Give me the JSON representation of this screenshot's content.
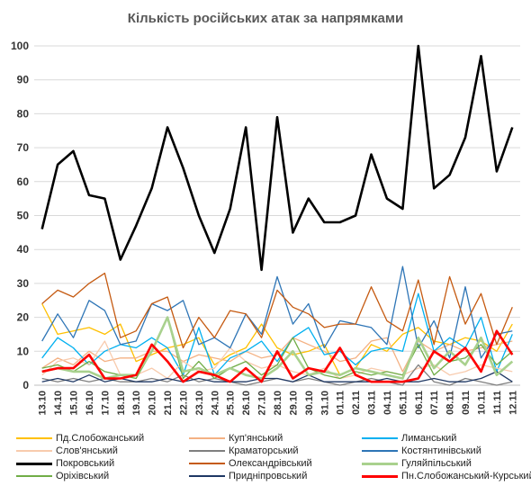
{
  "chart_data": {
    "type": "line",
    "title": "Кількість російських атак за напрямками",
    "xlabel": "",
    "ylabel": "",
    "ylim": [
      0,
      100
    ],
    "yticks": [
      0,
      10,
      20,
      30,
      40,
      50,
      60,
      70,
      80,
      90,
      100
    ],
    "grid": true,
    "legend_position": "bottom",
    "categories": [
      "13.10",
      "14.10",
      "15.10",
      "16.10",
      "17.10",
      "18.10",
      "19.10",
      "20.10",
      "21.10",
      "22.10",
      "23.10",
      "24.10",
      "25.10",
      "26.10",
      "27.10",
      "28.10",
      "29.10",
      "30.10",
      "31.10",
      "01.11",
      "02.11",
      "03.11",
      "04.11",
      "05.11",
      "06.11",
      "07.11",
      "08.11",
      "09.11",
      "10.11",
      "11.11",
      "12.11"
    ],
    "x_tick_labels": [
      "13.10",
      "14.10",
      "15.10",
      "16.10",
      "17.10",
      "18.10",
      "19.10",
      "20.10",
      "21.10",
      "22.10",
      "23.10",
      "24.10",
      "25.10",
      "26.10",
      "27.10",
      "28.10",
      "29.10",
      "30.10",
      "31.10",
      "01.11",
      "02.11",
      "03.11",
      "04.11",
      "05.11",
      "06.11",
      "07.11",
      "08.11",
      "09.11",
      "10.11",
      "11.11",
      "12.11"
    ],
    "series": [
      {
        "name": "Пд.Слобожанський",
        "color": "#FFC000",
        "width": 1.3,
        "values": [
          24,
          15,
          16,
          17,
          15,
          18,
          7,
          9,
          11,
          12,
          14,
          6,
          9,
          11,
          18,
          11,
          9,
          10,
          12,
          3,
          5,
          12,
          10,
          15,
          17,
          13,
          12,
          14,
          13,
          10,
          18
        ]
      },
      {
        "name": "Куп'янський",
        "color": "#F4B183",
        "width": 1.3,
        "values": [
          5,
          8,
          6,
          10,
          7,
          8,
          8,
          10,
          10,
          7,
          9,
          8,
          7,
          10,
          8,
          9,
          14,
          12,
          10,
          7,
          8,
          13,
          14,
          4,
          13,
          10,
          12,
          10,
          11,
          12,
          13
        ]
      },
      {
        "name": "Лиманський",
        "color": "#00B0F0",
        "width": 1.3,
        "values": [
          8,
          14,
          11,
          6,
          10,
          12,
          11,
          14,
          11,
          3,
          17,
          3,
          8,
          10,
          13,
          7,
          14,
          17,
          9,
          10,
          6,
          10,
          11,
          10,
          27,
          10,
          14,
          11,
          20,
          4,
          15
        ]
      },
      {
        "name": "Слов'янський",
        "color": "#F8CBAD",
        "width": 1.3,
        "values": [
          3,
          7,
          8,
          6,
          13,
          3,
          3,
          5,
          2,
          7,
          4,
          5,
          11,
          7,
          5,
          6,
          4,
          3,
          5,
          2,
          3,
          5,
          4,
          3,
          5,
          6,
          3,
          4,
          6,
          5,
          4
        ]
      },
      {
        "name": "Краматорський",
        "color": "#7F7F7F",
        "width": 1.3,
        "values": [
          2,
          1,
          2,
          1,
          2,
          1,
          1,
          2,
          1,
          3,
          1,
          2,
          1,
          0,
          1,
          2,
          1,
          2,
          1,
          0,
          1,
          2,
          1,
          0,
          6,
          1,
          0,
          2,
          1,
          0,
          1
        ]
      },
      {
        "name": "Костянтинівський",
        "color": "#2E75B6",
        "width": 1.3,
        "values": [
          13,
          21,
          14,
          25,
          22,
          12,
          13,
          24,
          22,
          25,
          12,
          14,
          11,
          21,
          15,
          32,
          18,
          24,
          11,
          19,
          18,
          17,
          12,
          35,
          11,
          19,
          8,
          29,
          8,
          15,
          16
        ]
      },
      {
        "name": "Покровський",
        "color": "#000000",
        "width": 2.6,
        "values": [
          46,
          65,
          69,
          56,
          55,
          37,
          47,
          58,
          76,
          64,
          50,
          39,
          52,
          76,
          34,
          79,
          45,
          55,
          48,
          48,
          50,
          68,
          55,
          52,
          100,
          58,
          62,
          73,
          97,
          63,
          76
        ]
      },
      {
        "name": "Олександрівський",
        "color": "#C55A11",
        "width": 1.3,
        "values": [
          24,
          28,
          26,
          30,
          33,
          14,
          16,
          24,
          26,
          11,
          20,
          14,
          22,
          21,
          14,
          28,
          23,
          21,
          17,
          18,
          18,
          29,
          19,
          16,
          31,
          12,
          32,
          18,
          27,
          12,
          23
        ]
      },
      {
        "name": "Гуляйпільський",
        "color": "#A9D18E",
        "width": 2.6,
        "values": [
          4,
          5,
          4,
          4,
          2,
          3,
          3,
          10,
          20,
          4,
          5,
          3,
          5,
          3,
          2,
          5,
          10,
          3,
          4,
          3,
          5,
          4,
          3,
          2,
          14,
          5,
          10,
          6,
          14,
          3,
          7
        ]
      },
      {
        "name": "Оріхівський",
        "color": "#70AD47",
        "width": 1.3,
        "values": [
          5,
          6,
          4,
          7,
          4,
          3,
          2,
          10,
          20,
          2,
          7,
          2,
          5,
          7,
          3,
          6,
          14,
          5,
          3,
          2,
          4,
          3,
          4,
          3,
          12,
          3,
          7,
          8,
          12,
          6,
          10
        ]
      },
      {
        "name": "Придніпровський",
        "color": "#1F3864",
        "width": 1.3,
        "values": [
          1,
          2,
          1,
          3,
          1,
          2,
          1,
          1,
          2,
          1,
          2,
          1,
          1,
          1,
          2,
          2,
          1,
          3,
          1,
          1,
          1,
          1,
          2,
          1,
          1,
          2,
          1,
          1,
          2,
          4,
          1
        ]
      },
      {
        "name": "Пн.Слобожанський-Курський",
        "color": "#FF0000",
        "width": 2.6,
        "values": [
          4,
          5,
          5,
          9,
          2,
          2,
          3,
          12,
          7,
          1,
          4,
          3,
          1,
          5,
          1,
          10,
          2,
          5,
          4,
          11,
          3,
          1,
          1,
          1,
          2,
          10,
          7,
          11,
          4,
          16,
          9
        ]
      }
    ]
  }
}
